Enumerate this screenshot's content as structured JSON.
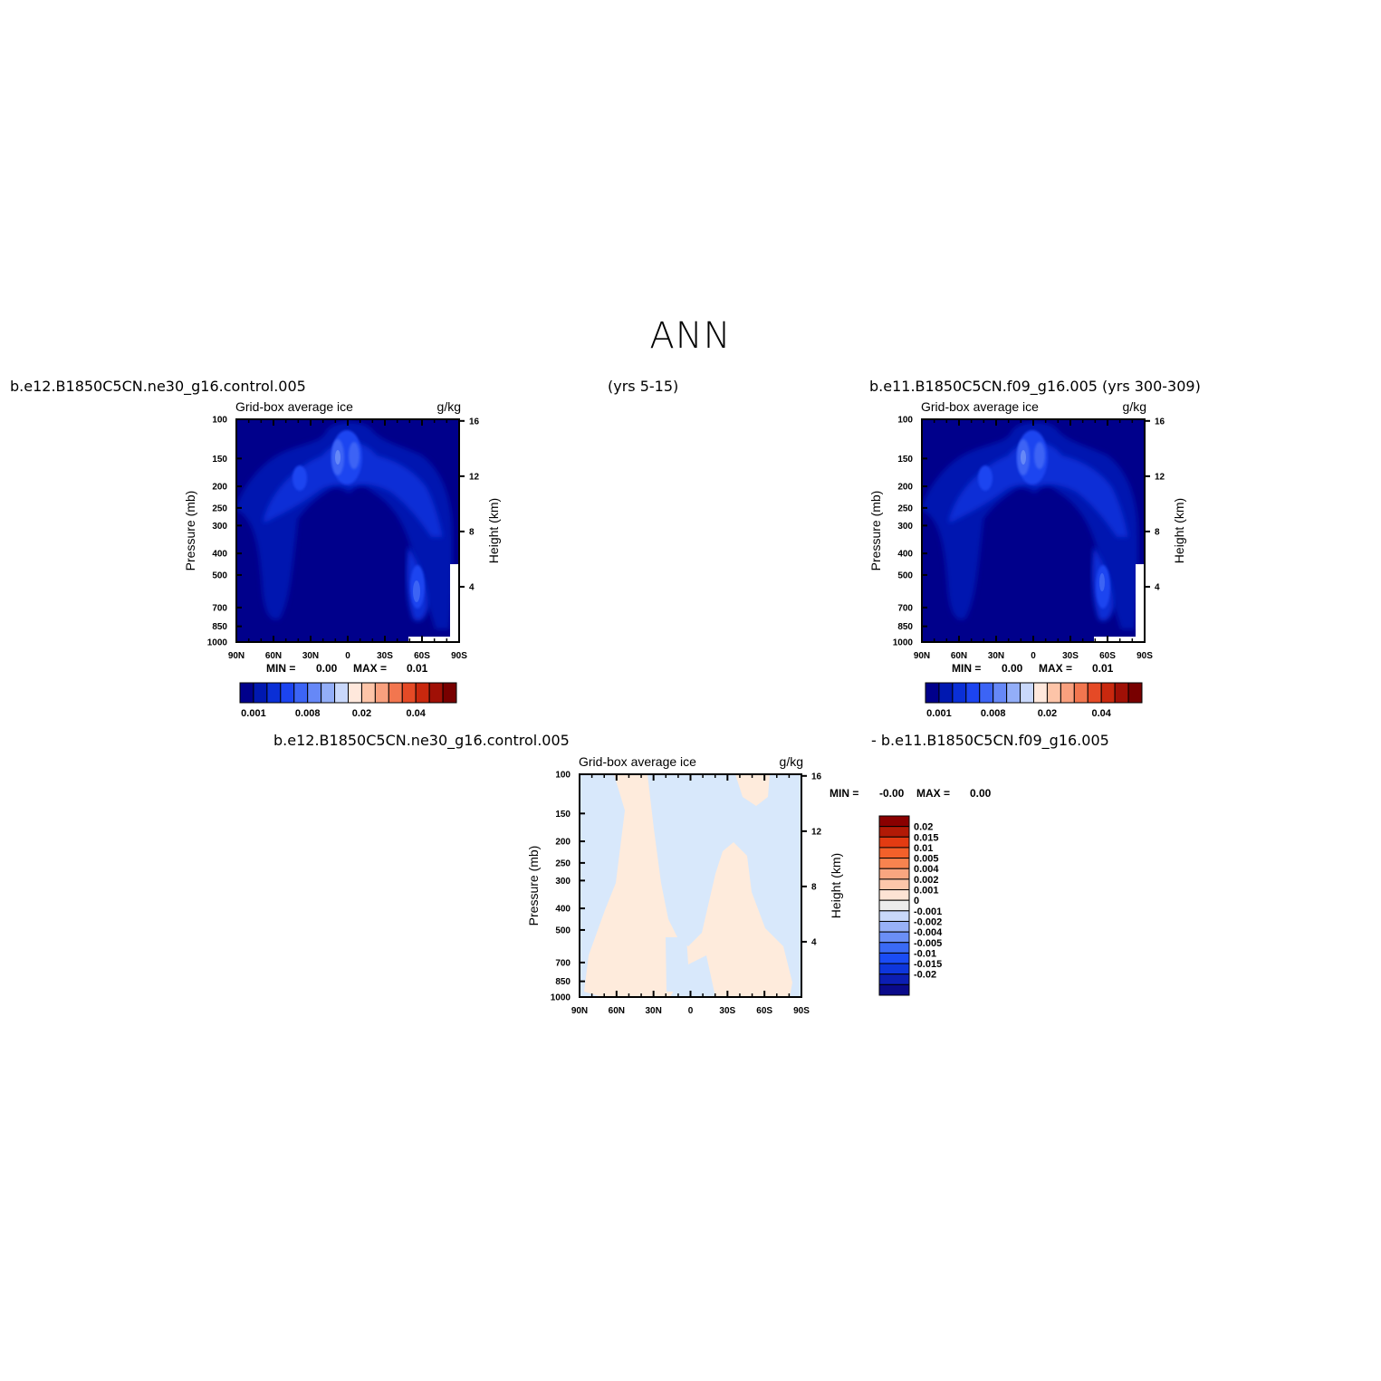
{
  "figure": {
    "title": "ANN",
    "case_a_label": "b.e12.B1850C5CN.ne30_g16.control.005",
    "case_a_years": "(yrs 5-15)",
    "case_b_label": "b.e11.B1850C5CN.f09_g16.005 (yrs 300-309)",
    "diff_label_left": "b.e12.B1850C5CN.ne30_g16.control.005",
    "diff_label_right": "- b.e11.B1850C5CN.f09_g16.005"
  },
  "colors": {
    "abs_levels": [
      "#00008b",
      "#0018b0",
      "#0a2fd6",
      "#1c44f0",
      "#3c64f5",
      "#6688f7",
      "#93aef8",
      "#c9d8fb",
      "#ffe8dc",
      "#fdc4a8",
      "#f9a07e",
      "#f2764f",
      "#e54a26",
      "#c9280e",
      "#a01006",
      "#780000"
    ],
    "diff_levels": [
      "#0a0a8a",
      "#0c1eb3",
      "#0e36dc",
      "#1a4cf5",
      "#3a6af5",
      "#6b8ff6",
      "#98b1f7",
      "#c9d8fa",
      "#ececec",
      "#fde3d4",
      "#fcc6aa",
      "#f9a680",
      "#f7834f",
      "#f3602a",
      "#e33b12",
      "#b21a06",
      "#8a0000"
    ]
  },
  "chart_data": [
    {
      "type": "contour",
      "panel": "case_a",
      "title": "Grid-box average ice",
      "units": "g/kg",
      "xlabel": "",
      "ylabel": "Pressure (mb)",
      "ylabel_right": "Height (km)",
      "x_ticks": [
        "90N",
        "60N",
        "30N",
        "0",
        "30S",
        "60S",
        "90S"
      ],
      "y_ticks": [
        "100",
        "150",
        "200",
        "250",
        "300",
        "400",
        "500",
        "700",
        "850",
        "1000"
      ],
      "y_right_ticks": [
        "16",
        "12",
        "8",
        "4"
      ],
      "min_label": "MIN =",
      "min_value": "0.00",
      "max_label": "MAX =",
      "max_value": "0.01",
      "colorbar_labels": [
        "0.001",
        "0.008",
        "0.02",
        "0.04"
      ]
    },
    {
      "type": "contour",
      "panel": "case_b",
      "title": "Grid-box average ice",
      "units": "g/kg",
      "xlabel": "",
      "ylabel": "Pressure (mb)",
      "ylabel_right": "Height (km)",
      "x_ticks": [
        "90N",
        "60N",
        "30N",
        "0",
        "30S",
        "60S",
        "90S"
      ],
      "y_ticks": [
        "100",
        "150",
        "200",
        "250",
        "300",
        "400",
        "500",
        "700",
        "850",
        "1000"
      ],
      "y_right_ticks": [
        "16",
        "12",
        "8",
        "4"
      ],
      "min_label": "MIN =",
      "min_value": "0.00",
      "max_label": "MAX =",
      "max_value": "0.01",
      "colorbar_labels": [
        "0.001",
        "0.008",
        "0.02",
        "0.04"
      ]
    },
    {
      "type": "contour",
      "panel": "difference",
      "title": "Grid-box average ice",
      "units": "g/kg",
      "xlabel": "",
      "ylabel": "Pressure (mb)",
      "ylabel_right": "Height (km)",
      "x_ticks": [
        "90N",
        "60N",
        "30N",
        "0",
        "30S",
        "60S",
        "90S"
      ],
      "y_ticks": [
        "100",
        "150",
        "200",
        "250",
        "300",
        "400",
        "500",
        "700",
        "850",
        "1000"
      ],
      "y_right_ticks": [
        "16",
        "12",
        "8",
        "4"
      ],
      "min_label": "MIN =",
      "min_value": "-0.00",
      "max_label": "MAX =",
      "max_value": "0.00",
      "colorbar_labels": [
        "0.02",
        "0.015",
        "0.01",
        "0.005",
        "0.004",
        "0.002",
        "0.001",
        "0",
        "-0.001",
        "-0.002",
        "-0.004",
        "-0.005",
        "-0.01",
        "-0.015",
        "-0.02"
      ]
    }
  ]
}
